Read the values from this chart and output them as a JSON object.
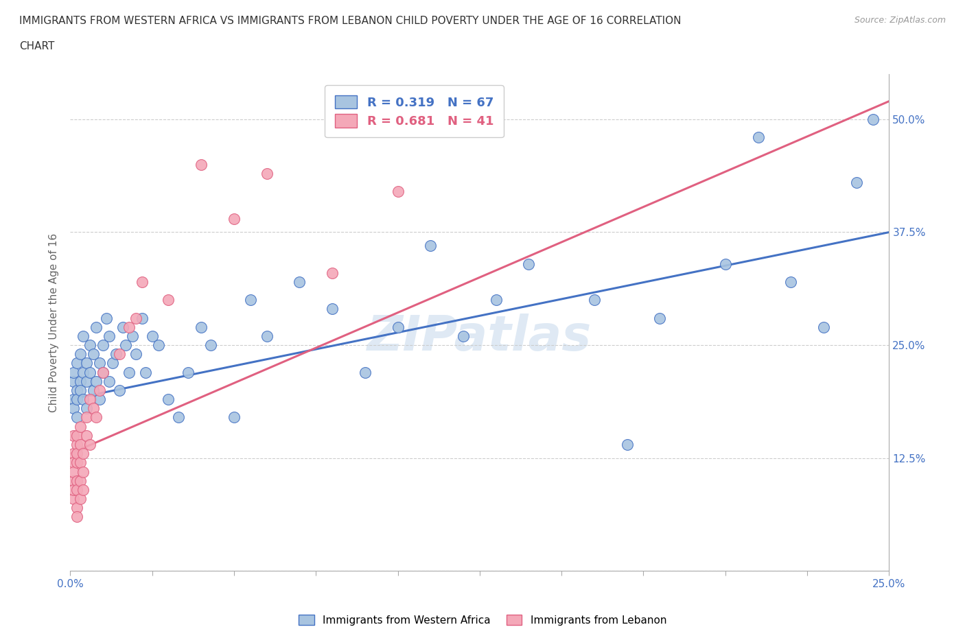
{
  "title_line1": "IMMIGRANTS FROM WESTERN AFRICA VS IMMIGRANTS FROM LEBANON CHILD POVERTY UNDER THE AGE OF 16 CORRELATION",
  "title_line2": "CHART",
  "source": "Source: ZipAtlas.com",
  "ylabel": "Child Poverty Under the Age of 16",
  "xlim": [
    0.0,
    0.25
  ],
  "ylim": [
    0.0,
    0.55
  ],
  "xtick_pos": [
    0.0,
    0.025,
    0.05,
    0.075,
    0.1,
    0.125,
    0.15,
    0.175,
    0.2,
    0.225,
    0.25
  ],
  "xtick_labels": [
    "0.0%",
    "",
    "",
    "",
    "",
    "",
    "",
    "",
    "",
    "",
    "25.0%"
  ],
  "ytick_pos": [
    0.0,
    0.125,
    0.25,
    0.375,
    0.5
  ],
  "ytick_labels": [
    "",
    "12.5%",
    "25.0%",
    "37.5%",
    "50.0%"
  ],
  "blue_R": 0.319,
  "blue_N": 67,
  "pink_R": 0.681,
  "pink_N": 41,
  "blue_color": "#a8c4e0",
  "pink_color": "#f4a8b8",
  "blue_line_color": "#4472c4",
  "pink_line_color": "#e06080",
  "legend_label_blue": "Immigrants from Western Africa",
  "legend_label_pink": "Immigrants from Lebanon",
  "watermark": "ZIPatlas",
  "blue_line_x0": 0.0,
  "blue_line_y0": 0.19,
  "blue_line_x1": 0.25,
  "blue_line_y1": 0.375,
  "pink_line_x0": 0.0,
  "pink_line_y0": 0.13,
  "pink_line_x1": 0.25,
  "pink_line_y1": 0.52,
  "blue_x": [
    0.001,
    0.001,
    0.001,
    0.001,
    0.002,
    0.002,
    0.002,
    0.002,
    0.003,
    0.003,
    0.003,
    0.004,
    0.004,
    0.004,
    0.005,
    0.005,
    0.005,
    0.006,
    0.006,
    0.007,
    0.007,
    0.008,
    0.008,
    0.009,
    0.009,
    0.01,
    0.01,
    0.011,
    0.012,
    0.012,
    0.013,
    0.014,
    0.015,
    0.016,
    0.017,
    0.018,
    0.019,
    0.02,
    0.022,
    0.023,
    0.025,
    0.027,
    0.03,
    0.033,
    0.036,
    0.04,
    0.043,
    0.05,
    0.055,
    0.06,
    0.07,
    0.08,
    0.09,
    0.1,
    0.11,
    0.12,
    0.13,
    0.14,
    0.16,
    0.17,
    0.18,
    0.2,
    0.21,
    0.22,
    0.23,
    0.24,
    0.245
  ],
  "blue_y": [
    0.19,
    0.21,
    0.22,
    0.18,
    0.2,
    0.23,
    0.19,
    0.17,
    0.21,
    0.24,
    0.2,
    0.22,
    0.19,
    0.26,
    0.21,
    0.23,
    0.18,
    0.22,
    0.25,
    0.2,
    0.24,
    0.21,
    0.27,
    0.23,
    0.19,
    0.22,
    0.25,
    0.28,
    0.21,
    0.26,
    0.23,
    0.24,
    0.2,
    0.27,
    0.25,
    0.22,
    0.26,
    0.24,
    0.28,
    0.22,
    0.26,
    0.25,
    0.19,
    0.17,
    0.22,
    0.27,
    0.25,
    0.17,
    0.3,
    0.26,
    0.32,
    0.29,
    0.22,
    0.27,
    0.36,
    0.26,
    0.3,
    0.34,
    0.3,
    0.14,
    0.28,
    0.34,
    0.48,
    0.32,
    0.27,
    0.43,
    0.5
  ],
  "pink_x": [
    0.001,
    0.001,
    0.001,
    0.001,
    0.001,
    0.001,
    0.001,
    0.002,
    0.002,
    0.002,
    0.002,
    0.002,
    0.002,
    0.002,
    0.002,
    0.003,
    0.003,
    0.003,
    0.003,
    0.003,
    0.004,
    0.004,
    0.004,
    0.005,
    0.005,
    0.006,
    0.006,
    0.007,
    0.008,
    0.009,
    0.01,
    0.015,
    0.018,
    0.02,
    0.022,
    0.03,
    0.04,
    0.05,
    0.06,
    0.08,
    0.1
  ],
  "pink_y": [
    0.13,
    0.15,
    0.12,
    0.1,
    0.08,
    0.11,
    0.09,
    0.14,
    0.12,
    0.1,
    0.09,
    0.07,
    0.06,
    0.13,
    0.15,
    0.12,
    0.1,
    0.08,
    0.14,
    0.16,
    0.11,
    0.13,
    0.09,
    0.17,
    0.15,
    0.19,
    0.14,
    0.18,
    0.17,
    0.2,
    0.22,
    0.24,
    0.27,
    0.28,
    0.32,
    0.3,
    0.45,
    0.39,
    0.44,
    0.33,
    0.42
  ]
}
